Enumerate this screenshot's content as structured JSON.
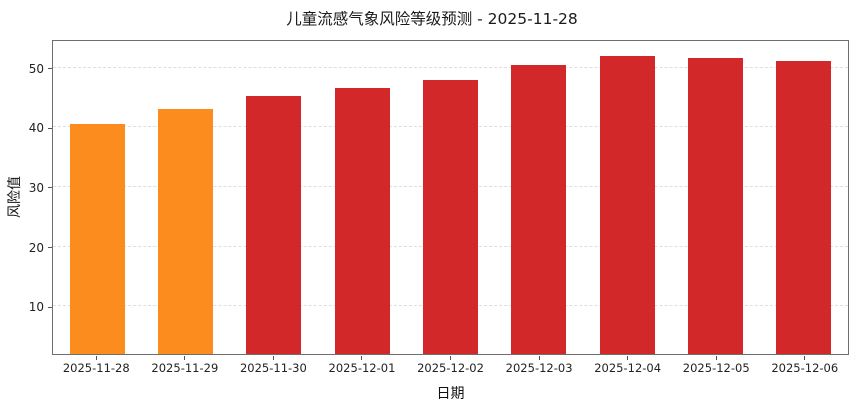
{
  "chart_data": {
    "type": "bar",
    "title": "儿童流感气象风险等级预测 - 2025-11-28",
    "xlabel": "日期",
    "ylabel": "风险值",
    "categories": [
      "2025-11-28",
      "2025-11-29",
      "2025-11-30",
      "2025-12-01",
      "2025-12-02",
      "2025-12-03",
      "2025-12-04",
      "2025-12-05",
      "2025-12-06"
    ],
    "values": [
      40.5,
      43.0,
      45.2,
      46.6,
      48.0,
      50.4,
      52.0,
      51.6,
      51.1
    ],
    "colors": [
      "#fd8c1f",
      "#fd8c1f",
      "#d3282a",
      "#d3282a",
      "#d3282a",
      "#d3282a",
      "#d3282a",
      "#d3282a",
      "#d3282a"
    ],
    "yticks": [
      10,
      20,
      30,
      40,
      50
    ],
    "ylim": [
      2,
      54.8
    ],
    "grid": true,
    "legend": null
  }
}
